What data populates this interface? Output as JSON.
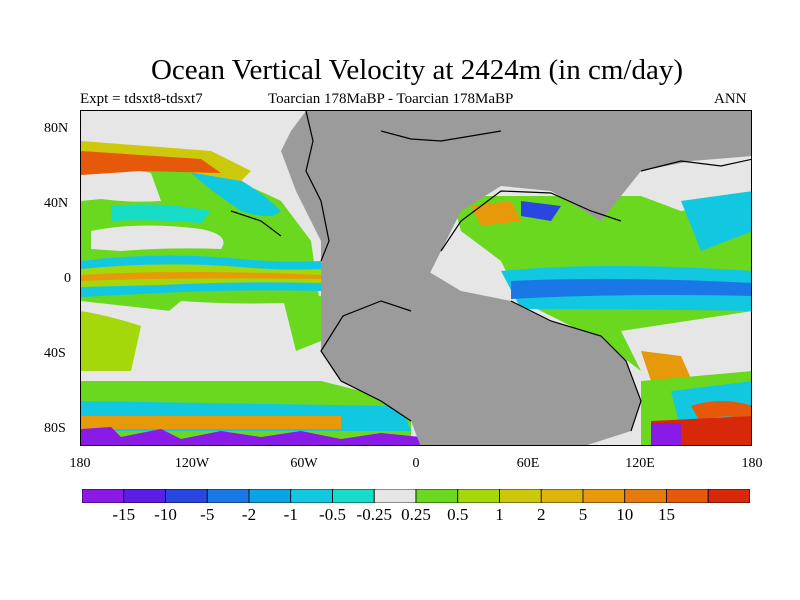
{
  "figure": {
    "title": "Ocean Vertical Velocity at 2424m (in cm/day)",
    "subtitle_left": "Expt = tdsxt8-tdsxt7",
    "subtitle_center": "Toarcian 178MaBP - Toarcian 178MaBP",
    "subtitle_right": "ANN"
  },
  "axes": {
    "lat_labels": [
      "80N",
      "40N",
      "0",
      "40S",
      "80S"
    ],
    "lon_labels": [
      "180",
      "120W",
      "60W",
      "0",
      "60E",
      "120E",
      "180"
    ]
  },
  "legend": {
    "colors": [
      "#8a1ae6",
      "#5a1ee6",
      "#2a46e0",
      "#1a78e6",
      "#0aa4e6",
      "#12c8e0",
      "#16dcc8",
      "#e6e6e6",
      "#6ad81e",
      "#a4d80a",
      "#ccc80a",
      "#dcb40a",
      "#e69a0a",
      "#e67a0a",
      "#e6580a",
      "#d8280a"
    ],
    "labels": [
      "-15",
      "-10",
      "-5",
      "-2",
      "-1",
      "-0.5",
      "-0.25",
      "0.25",
      "0.5",
      "1",
      "2",
      "5",
      "10",
      "15"
    ]
  },
  "map": {
    "land_color": "#9b9b9b",
    "background_color": "#e6e6e6",
    "coastline_color": "#000000"
  }
}
